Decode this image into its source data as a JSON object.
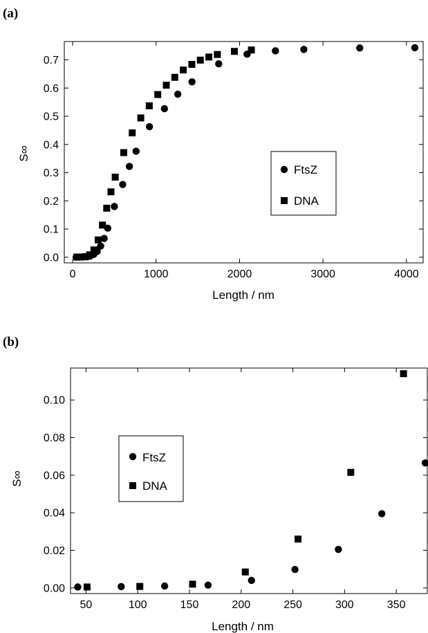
{
  "chart_data": [
    {
      "panel_label": "(a)",
      "type": "scatter",
      "xlabel": "Length / nm",
      "ylabel": "S∞",
      "xlim": [
        -100,
        4200
      ],
      "ylim": [
        -0.02,
        0.765
      ],
      "xticks": [
        0,
        1000,
        2000,
        3000,
        4000
      ],
      "xtick_labels": [
        "0",
        "1000",
        "2000",
        "3000",
        "4000"
      ],
      "yticks": [
        0.0,
        0.1,
        0.2,
        0.3,
        0.4,
        0.5,
        0.6,
        0.7
      ],
      "ytick_labels": [
        "0.0",
        "0.1",
        "0.2",
        "0.3",
        "0.4",
        "0.5",
        "0.6",
        "0.7"
      ],
      "grid": false,
      "legend_position": "center-right",
      "series": [
        {
          "name": "FtsZ",
          "marker": "circle",
          "x": [
            42,
            84,
            126,
            168,
            210,
            252,
            294,
            336,
            378,
            420,
            500,
            600,
            680,
            760,
            920,
            1100,
            1260,
            1430,
            1750,
            2090,
            2430,
            2770,
            3440,
            4100
          ],
          "y": [
            0.0005,
            0.0007,
            0.001,
            0.0015,
            0.004,
            0.0098,
            0.0205,
            0.0395,
            0.0665,
            0.103,
            0.18,
            0.258,
            0.322,
            0.376,
            0.463,
            0.527,
            0.578,
            0.622,
            0.686,
            0.72,
            0.732,
            0.737,
            0.742,
            0.743
          ]
        },
        {
          "name": "DNA",
          "marker": "square",
          "x": [
            51,
            102,
            153,
            204,
            255,
            306,
            357,
            408,
            459,
            510,
            612,
            714,
            816,
            918,
            1020,
            1122,
            1224,
            1326,
            1428,
            1530,
            1632,
            1734,
            1938,
            2142
          ],
          "y": [
            0.0005,
            0.0008,
            0.002,
            0.0085,
            0.026,
            0.0615,
            0.114,
            0.174,
            0.232,
            0.284,
            0.371,
            0.441,
            0.494,
            0.537,
            0.577,
            0.61,
            0.638,
            0.664,
            0.684,
            0.699,
            0.71,
            0.719,
            0.73,
            0.735
          ]
        }
      ]
    },
    {
      "panel_label": "(b)",
      "type": "scatter",
      "xlabel": "Length / nm",
      "ylabel": "S∞",
      "xlim": [
        35,
        380
      ],
      "ylim": [
        -0.003,
        0.117
      ],
      "xticks": [
        50,
        100,
        150,
        200,
        250,
        300,
        350
      ],
      "xtick_labels": [
        "50",
        "100",
        "150",
        "200",
        "250",
        "300",
        "350"
      ],
      "yticks": [
        0.0,
        0.02,
        0.04,
        0.06,
        0.08,
        0.1
      ],
      "ytick_labels": [
        "0.00",
        "0.02",
        "0.04",
        "0.06",
        "0.08",
        "0.10"
      ],
      "grid": false,
      "legend_position": "center-left",
      "series": [
        {
          "name": "FtsZ",
          "marker": "circle",
          "x": [
            42,
            84,
            126,
            168,
            210,
            252,
            294,
            336,
            378
          ],
          "y": [
            0.0005,
            0.0007,
            0.001,
            0.0015,
            0.004,
            0.0098,
            0.0205,
            0.0395,
            0.0665
          ]
        },
        {
          "name": "DNA",
          "marker": "square",
          "x": [
            51,
            102,
            153,
            204,
            255,
            306,
            357
          ],
          "y": [
            0.0005,
            0.0008,
            0.002,
            0.0085,
            0.026,
            0.0615,
            0.114
          ]
        }
      ]
    }
  ]
}
